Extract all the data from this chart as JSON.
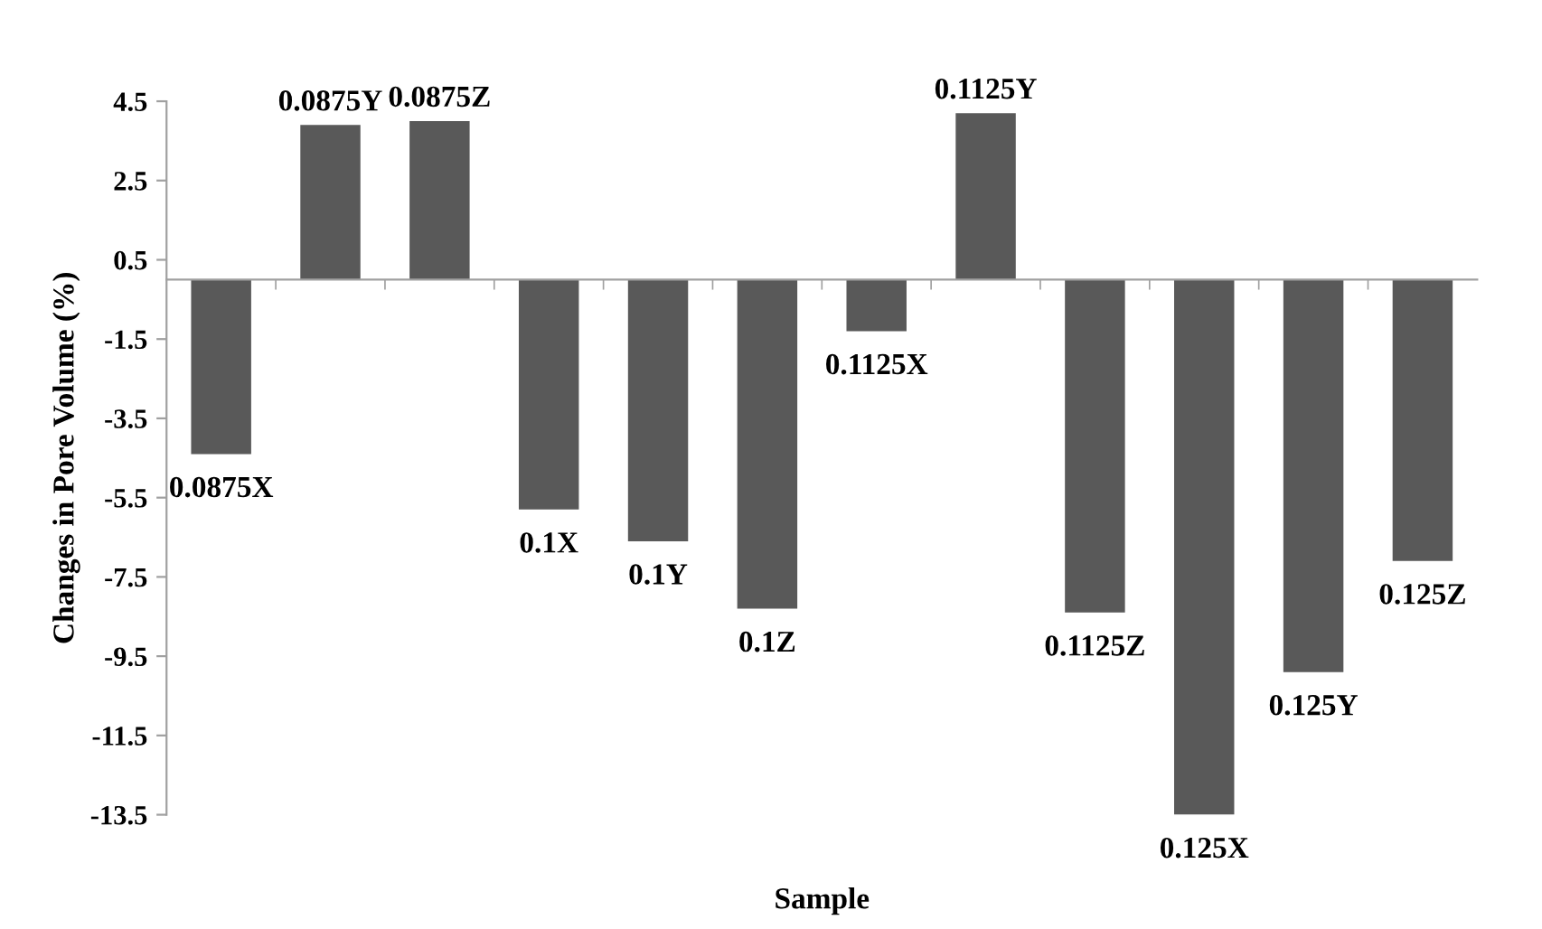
{
  "chart_data": {
    "type": "bar",
    "xlabel": "Sample",
    "ylabel": "Changes in Pore Volume (%)",
    "categories": [
      "0.0875X",
      "0.0875Y",
      "0.0875Z",
      "0.1X",
      "0.1Y",
      "0.1Z",
      "0.1125X",
      "0.1125Y",
      "0.1125Z",
      "0.125X",
      "0.125Y",
      "0.125Z"
    ],
    "values": [
      -4.4,
      3.9,
      4.0,
      -5.8,
      -6.6,
      -8.3,
      -1.3,
      4.2,
      -8.4,
      -13.5,
      -9.9,
      -7.1
    ],
    "color": "#595959",
    "ylim": [
      -13.5,
      4.5
    ],
    "yticks": [
      4.5,
      2.5,
      0.5,
      -1.5,
      -3.5,
      -5.5,
      -7.5,
      -9.5,
      -11.5,
      -13.5
    ],
    "grid": false
  }
}
